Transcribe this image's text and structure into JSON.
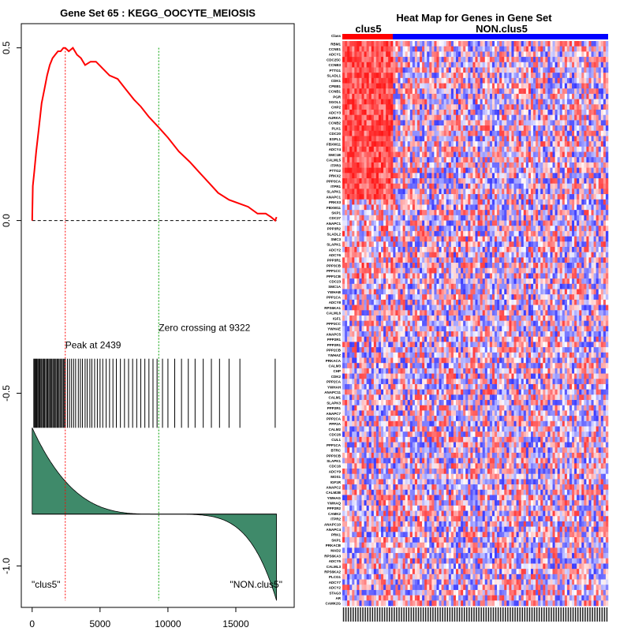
{
  "left_panel": {
    "title": "Gene Set  65 : KEGG_OOCYTE_MEIOSIS",
    "peak_label": "Peak at 2439",
    "zero_label": "Zero crossing at 9322",
    "left_phenotype": "\"clus5\"",
    "right_phenotype": "\"NON.clus5\""
  },
  "right_panel": {
    "title": "Heat Map for Genes in Gene Set",
    "group_a": "clus5",
    "group_b": "NON.clus5"
  },
  "colors": {
    "es_line": "#ff0000",
    "peak_line": "#ff0000",
    "zero_line": "#00a000",
    "metric_fill": "#3f8a6a",
    "bar_a": "#ff0000",
    "bar_b": "#0000ff"
  },
  "chart_data": [
    {
      "type": "line",
      "name": "running-enrichment-score",
      "x_domain": [
        0,
        18000
      ],
      "xlim": [
        -800,
        19300
      ],
      "ylim": [
        -1.12,
        0.57
      ],
      "x_ticks": [
        0,
        5000,
        10000,
        15000
      ],
      "x_tick_labels": [
        "0",
        "5000",
        "10000",
        "15000"
      ],
      "y_ticks": [
        0.5,
        0.0,
        -0.5,
        -1.0
      ],
      "y_tick_labels": [
        "0.5",
        "0.0",
        "-0.5",
        "-1.0"
      ],
      "peak_x": 2439,
      "zero_crossing_x": 9322,
      "n_genes": 18000,
      "es_x": [
        0,
        50,
        150,
        300,
        500,
        700,
        900,
        1100,
        1300,
        1500,
        1700,
        1900,
        2100,
        2300,
        2439,
        2700,
        3000,
        3300,
        3600,
        3900,
        4300,
        4700,
        5200,
        5700,
        6300,
        6900,
        7500,
        8000,
        8600,
        9322,
        10000,
        10800,
        11600,
        12300,
        13000,
        13700,
        14500,
        15200,
        15900,
        16600,
        17200,
        17600,
        17900,
        18000
      ],
      "es_y": [
        0.0,
        0.1,
        0.14,
        0.2,
        0.27,
        0.34,
        0.38,
        0.42,
        0.45,
        0.47,
        0.48,
        0.49,
        0.49,
        0.5,
        0.5,
        0.49,
        0.5,
        0.48,
        0.47,
        0.45,
        0.46,
        0.46,
        0.44,
        0.42,
        0.41,
        0.38,
        0.35,
        0.33,
        0.3,
        0.27,
        0.24,
        0.2,
        0.17,
        0.14,
        0.11,
        0.08,
        0.06,
        0.05,
        0.04,
        0.02,
        0.02,
        0.01,
        0.0,
        0.01
      ],
      "hit_positions": [
        120,
        180,
        240,
        300,
        360,
        430,
        500,
        560,
        640,
        700,
        780,
        850,
        920,
        1000,
        1080,
        1150,
        1230,
        1300,
        1380,
        1450,
        1530,
        1600,
        1680,
        1750,
        1830,
        1900,
        1980,
        2060,
        2140,
        2220,
        2300,
        2380,
        2439,
        2600,
        2750,
        2900,
        3050,
        3200,
        3400,
        3550,
        3700,
        3900,
        4050,
        4250,
        4400,
        4600,
        4800,
        5000,
        5200,
        5450,
        5700,
        5950,
        6200,
        6500,
        6800,
        7100,
        7400,
        7700,
        8000,
        8300,
        8600,
        8900,
        9200,
        9600,
        10000,
        10500,
        11000,
        11500,
        12000,
        12600,
        13200,
        13800,
        14500,
        15300,
        17900
      ]
    },
    {
      "type": "heatmap",
      "name": "gene-set-heatmap",
      "group_a_fraction": 0.19,
      "row_labels": [
        "Class",
        "RBM1",
        "CCNE1",
        "ADCY1",
        "CDC25C",
        "CCNB3",
        "PTTG1",
        "SLADL1",
        "CDK1",
        "CPEB1",
        "CCNB1",
        "PGR",
        "SGOL1",
        "CHP2",
        "ADCY3",
        "AURKA",
        "CCNB2",
        "PLK1",
        "CDC20",
        "ESPL1",
        "FBXW11",
        "ADCY4",
        "SMC1B",
        "CALML5",
        "ITPR3",
        "PTTG2",
        "PRKX2",
        "PPP3CA",
        "ITPR1",
        "SLAPK1",
        "ANAPC1",
        "PRKX3",
        "FBXW11",
        "SKP1",
        "CDC27",
        "ANAPC1",
        "PPP3R2",
        "SLADL2",
        "SMC3",
        "SLAPK1",
        "ADCY2",
        "ADCY6",
        "PPP3R1",
        "PPP3CB",
        "PPP1CC",
        "PPP1CB",
        "CDC23",
        "SMC1A",
        "YWHAB",
        "PPP1CA",
        "ADCY8",
        "RPS6KA1",
        "CALML6",
        "IGF1",
        "PPP3CC",
        "YWHAE",
        "ANAPC5",
        "PPP2R1",
        "PPP2R1",
        "PPP2CB",
        "YWHAZ",
        "PRKACA",
        "CALM3",
        "CHP",
        "CDK2",
        "PPP2CA",
        "YWHAH",
        "ANAPC11",
        "CALM1",
        "SLAPK3",
        "PPP2R1",
        "ANAPC7",
        "PPP2CA",
        "PPP2A",
        "CALM2",
        "CDC26",
        "CUL1",
        "PPP1CA",
        "BTRC",
        "PPP3CB",
        "SLAPK1",
        "CDC16",
        "ADCY9",
        "MOS1",
        "IGF1R",
        "ANAPC2",
        "CALM2B",
        "YWHAG",
        "YWHAQ",
        "PPP2R2",
        "CAMK2",
        "ITPR2",
        "ANAPC10",
        "ANAPC4",
        "PRK1",
        "SKP1",
        "PRKACB",
        "MAD2",
        "RPS6KA3",
        "ADCY5",
        "CALML3",
        "RPS6KA2",
        "PLCG1",
        "ADCY7",
        "ADCY2",
        "STAG3",
        "AR",
        "CAMK2G"
      ]
    }
  ]
}
